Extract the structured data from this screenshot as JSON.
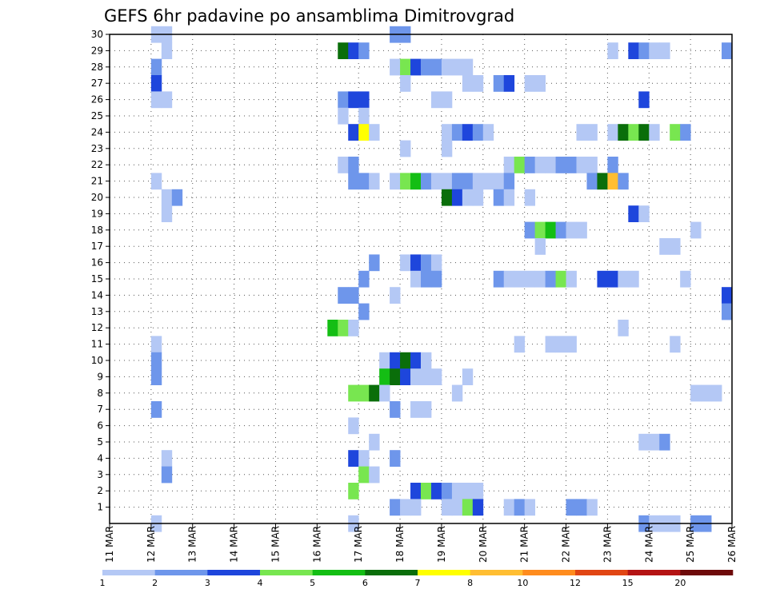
{
  "chart_data": {
    "type": "heatmap",
    "title": "GEFS 6hr padavine po ansamblima Dimitrovgrad",
    "xlabel": "",
    "ylabel": "",
    "x_ticks": [
      "11 MAR",
      "12 MAR",
      "13 MAR",
      "14 MAR",
      "15 MAR",
      "16 MAR",
      "17 MAR",
      "18 MAR",
      "19 MAR",
      "20 MAR",
      "21 MAR",
      "22 MAR",
      "23 MAR",
      "24 MAR",
      "25 MAR",
      "26 MAR"
    ],
    "xlim": [
      0,
      60
    ],
    "x_units": "6-hour steps from 11 MAR 00Z",
    "y_ticks": [
      1,
      2,
      3,
      4,
      5,
      6,
      7,
      8,
      9,
      10,
      11,
      12,
      13,
      14,
      15,
      16,
      17,
      18,
      19,
      20,
      21,
      22,
      23,
      24,
      25,
      26,
      27,
      28,
      29,
      30
    ],
    "ylim": [
      0,
      30
    ],
    "y_units": "ensemble member",
    "grid": true,
    "colorbar": {
      "ticks": [
        "1",
        "2",
        "3",
        "4",
        "5",
        "6",
        "7",
        "8",
        "10",
        "12",
        "15",
        "20"
      ],
      "colors": [
        "#b4c8f5",
        "#6e96eb",
        "#1e46dc",
        "#78e650",
        "#14be14",
        "#0a6e0a",
        "#ffff00",
        "#ffbe32",
        "#ff8c1e",
        "#e14614",
        "#b41414",
        "#6e0a0a"
      ],
      "placement": "bottom"
    },
    "cells": [
      [
        4,
        30,
        1
      ],
      [
        5,
        30,
        1
      ],
      [
        27,
        30,
        2
      ],
      [
        28,
        30,
        2
      ],
      [
        5,
        29,
        1
      ],
      [
        22,
        29,
        6
      ],
      [
        23,
        29,
        3
      ],
      [
        24,
        29,
        2
      ],
      [
        48,
        29,
        1
      ],
      [
        50,
        29,
        3
      ],
      [
        51,
        29,
        2
      ],
      [
        52,
        29,
        1
      ],
      [
        53,
        29,
        1
      ],
      [
        59,
        29,
        2
      ],
      [
        4,
        28,
        2
      ],
      [
        27,
        28,
        1
      ],
      [
        28,
        28,
        4
      ],
      [
        29,
        28,
        3
      ],
      [
        30,
        28,
        2
      ],
      [
        31,
        28,
        2
      ],
      [
        32,
        28,
        1
      ],
      [
        33,
        28,
        1
      ],
      [
        34,
        28,
        1
      ],
      [
        4,
        27,
        3
      ],
      [
        28,
        27,
        1
      ],
      [
        34,
        27,
        1
      ],
      [
        35,
        27,
        1
      ],
      [
        37,
        27,
        2
      ],
      [
        38,
        27,
        3
      ],
      [
        40,
        27,
        1
      ],
      [
        41,
        27,
        1
      ],
      [
        4,
        26,
        1
      ],
      [
        5,
        26,
        1
      ],
      [
        22,
        26,
        2
      ],
      [
        23,
        26,
        3
      ],
      [
        24,
        26,
        3
      ],
      [
        31,
        26,
        1
      ],
      [
        32,
        26,
        1
      ],
      [
        51,
        26,
        3
      ],
      [
        22,
        25,
        1
      ],
      [
        24,
        25,
        1
      ],
      [
        23,
        24,
        3
      ],
      [
        24,
        24,
        7
      ],
      [
        25,
        24,
        1
      ],
      [
        32,
        24,
        1
      ],
      [
        33,
        24,
        2
      ],
      [
        34,
        24,
        3
      ],
      [
        35,
        24,
        2
      ],
      [
        36,
        24,
        1
      ],
      [
        45,
        24,
        1
      ],
      [
        46,
        24,
        1
      ],
      [
        48,
        24,
        1
      ],
      [
        49,
        24,
        6
      ],
      [
        50,
        24,
        4
      ],
      [
        51,
        24,
        6
      ],
      [
        52,
        24,
        1
      ],
      [
        54,
        24,
        4
      ],
      [
        55,
        24,
        2
      ],
      [
        28,
        23,
        1
      ],
      [
        32,
        23,
        1
      ],
      [
        22,
        22,
        1
      ],
      [
        23,
        22,
        2
      ],
      [
        38,
        22,
        1
      ],
      [
        39,
        22,
        4
      ],
      [
        40,
        22,
        2
      ],
      [
        41,
        22,
        1
      ],
      [
        42,
        22,
        1
      ],
      [
        43,
        22,
        2
      ],
      [
        44,
        22,
        2
      ],
      [
        45,
        22,
        1
      ],
      [
        46,
        22,
        1
      ],
      [
        48,
        22,
        2
      ],
      [
        4,
        21,
        1
      ],
      [
        23,
        21,
        2
      ],
      [
        24,
        21,
        2
      ],
      [
        25,
        21,
        1
      ],
      [
        27,
        21,
        1
      ],
      [
        28,
        21,
        4
      ],
      [
        29,
        21,
        5
      ],
      [
        30,
        21,
        2
      ],
      [
        31,
        21,
        1
      ],
      [
        32,
        21,
        1
      ],
      [
        33,
        21,
        2
      ],
      [
        34,
        21,
        2
      ],
      [
        35,
        21,
        1
      ],
      [
        36,
        21,
        1
      ],
      [
        37,
        21,
        1
      ],
      [
        38,
        21,
        2
      ],
      [
        46,
        21,
        2
      ],
      [
        47,
        21,
        6
      ],
      [
        48,
        21,
        8
      ],
      [
        49,
        21,
        2
      ],
      [
        5,
        20,
        1
      ],
      [
        6,
        20,
        2
      ],
      [
        32,
        20,
        6
      ],
      [
        33,
        20,
        3
      ],
      [
        34,
        20,
        1
      ],
      [
        35,
        20,
        1
      ],
      [
        37,
        20,
        2
      ],
      [
        38,
        20,
        1
      ],
      [
        40,
        20,
        1
      ],
      [
        5,
        19,
        1
      ],
      [
        50,
        19,
        3
      ],
      [
        51,
        19,
        1
      ],
      [
        40,
        18,
        2
      ],
      [
        41,
        18,
        4
      ],
      [
        42,
        18,
        5
      ],
      [
        43,
        18,
        2
      ],
      [
        44,
        18,
        1
      ],
      [
        45,
        18,
        1
      ],
      [
        56,
        18,
        1
      ],
      [
        41,
        17,
        1
      ],
      [
        53,
        17,
        1
      ],
      [
        54,
        17,
        1
      ],
      [
        25,
        16,
        2
      ],
      [
        28,
        16,
        1
      ],
      [
        29,
        16,
        3
      ],
      [
        30,
        16,
        2
      ],
      [
        31,
        16,
        1
      ],
      [
        24,
        15,
        2
      ],
      [
        29,
        15,
        1
      ],
      [
        30,
        15,
        2
      ],
      [
        31,
        15,
        2
      ],
      [
        37,
        15,
        2
      ],
      [
        38,
        15,
        1
      ],
      [
        39,
        15,
        1
      ],
      [
        40,
        15,
        1
      ],
      [
        41,
        15,
        1
      ],
      [
        42,
        15,
        2
      ],
      [
        43,
        15,
        4
      ],
      [
        44,
        15,
        1
      ],
      [
        47,
        15,
        3
      ],
      [
        48,
        15,
        3
      ],
      [
        49,
        15,
        1
      ],
      [
        50,
        15,
        1
      ],
      [
        55,
        15,
        1
      ],
      [
        22,
        14,
        2
      ],
      [
        23,
        14,
        2
      ],
      [
        27,
        14,
        1
      ],
      [
        59,
        14,
        3
      ],
      [
        24,
        13,
        2
      ],
      [
        59,
        13,
        2
      ],
      [
        21,
        12,
        5
      ],
      [
        22,
        12,
        4
      ],
      [
        23,
        12,
        1
      ],
      [
        49,
        12,
        1
      ],
      [
        4,
        11,
        1
      ],
      [
        39,
        11,
        1
      ],
      [
        42,
        11,
        1
      ],
      [
        43,
        11,
        1
      ],
      [
        44,
        11,
        1
      ],
      [
        54,
        11,
        1
      ],
      [
        4,
        10,
        2
      ],
      [
        26,
        10,
        1
      ],
      [
        27,
        10,
        3
      ],
      [
        28,
        10,
        6
      ],
      [
        29,
        10,
        3
      ],
      [
        30,
        10,
        1
      ],
      [
        4,
        9,
        2
      ],
      [
        26,
        9,
        5
      ],
      [
        27,
        9,
        6
      ],
      [
        28,
        9,
        3
      ],
      [
        29,
        9,
        1
      ],
      [
        30,
        9,
        1
      ],
      [
        31,
        9,
        1
      ],
      [
        34,
        9,
        1
      ],
      [
        23,
        8,
        4
      ],
      [
        24,
        8,
        4
      ],
      [
        25,
        8,
        6
      ],
      [
        26,
        8,
        1
      ],
      [
        33,
        8,
        1
      ],
      [
        56,
        8,
        1
      ],
      [
        57,
        8,
        1
      ],
      [
        58,
        8,
        1
      ],
      [
        4,
        7,
        2
      ],
      [
        27,
        7,
        2
      ],
      [
        29,
        7,
        1
      ],
      [
        30,
        7,
        1
      ],
      [
        23,
        6,
        1
      ],
      [
        25,
        5,
        1
      ],
      [
        51,
        5,
        1
      ],
      [
        52,
        5,
        1
      ],
      [
        53,
        5,
        2
      ],
      [
        5,
        4,
        1
      ],
      [
        23,
        4,
        3
      ],
      [
        24,
        4,
        1
      ],
      [
        27,
        4,
        2
      ],
      [
        5,
        3,
        2
      ],
      [
        24,
        3,
        4
      ],
      [
        25,
        3,
        1
      ],
      [
        23,
        2,
        4
      ],
      [
        29,
        2,
        3
      ],
      [
        30,
        2,
        4
      ],
      [
        31,
        2,
        3
      ],
      [
        32,
        2,
        2
      ],
      [
        33,
        2,
        1
      ],
      [
        34,
        2,
        1
      ],
      [
        35,
        2,
        1
      ],
      [
        27,
        1,
        2
      ],
      [
        28,
        1,
        1
      ],
      [
        29,
        1,
        1
      ],
      [
        32,
        1,
        1
      ],
      [
        33,
        1,
        1
      ],
      [
        34,
        1,
        4
      ],
      [
        35,
        1,
        3
      ],
      [
        38,
        1,
        1
      ],
      [
        39,
        1,
        2
      ],
      [
        40,
        1,
        1
      ],
      [
        44,
        1,
        2
      ],
      [
        45,
        1,
        2
      ],
      [
        46,
        1,
        1
      ],
      [
        4,
        0,
        1
      ],
      [
        23,
        0,
        1
      ],
      [
        51,
        0,
        2
      ],
      [
        52,
        0,
        1
      ],
      [
        53,
        0,
        1
      ],
      [
        54,
        0,
        1
      ],
      [
        56,
        0,
        2
      ],
      [
        57,
        0,
        2
      ]
    ]
  }
}
